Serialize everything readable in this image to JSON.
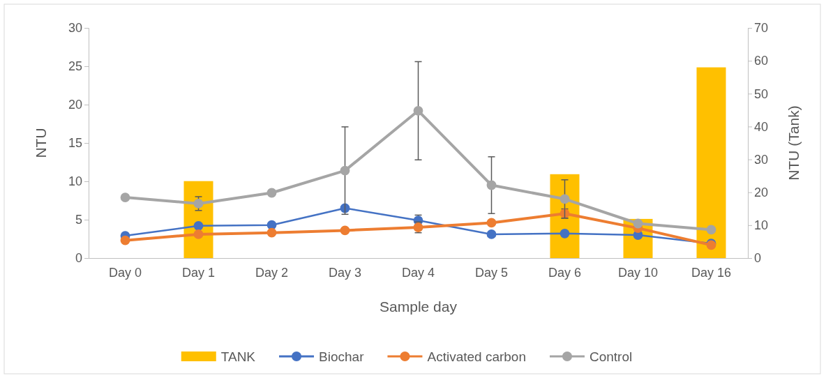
{
  "chart_data": {
    "type": "line",
    "xlabel": "Sample day",
    "ylabel": "NTU",
    "y2label": "NTU (Tank)",
    "categories": [
      "Day 0",
      "Day 1",
      "Day 2",
      "Day 3",
      "Day 4",
      "Day 5",
      "Day 6",
      "Day 10",
      "Day 16"
    ],
    "ylim": [
      0,
      30
    ],
    "yticks": [
      0,
      5,
      10,
      15,
      20,
      25,
      30
    ],
    "y2lim": [
      0,
      70
    ],
    "y2ticks": [
      0,
      10,
      20,
      30,
      40,
      50,
      60,
      70
    ],
    "grid": false,
    "legend": "bottom",
    "marker": "circle",
    "series": [
      {
        "name": "TANK",
        "type": "bar",
        "axis": "y2",
        "color": "#ffc000",
        "values": [
          null,
          23.4,
          null,
          null,
          null,
          null,
          25.5,
          11.9,
          58
        ]
      },
      {
        "name": "Biochar",
        "color": "#4472c4",
        "values": [
          2.9,
          4.2,
          4.3,
          6.5,
          4.9,
          3.1,
          3.2,
          3.0,
          1.9
        ],
        "errors": [
          null,
          null,
          null,
          null,
          0.7,
          null,
          null,
          null,
          null
        ]
      },
      {
        "name": "Activated carbon",
        "color": "#ed7d31",
        "values": [
          2.3,
          3.1,
          3.3,
          3.6,
          4.0,
          4.6,
          5.8,
          3.9,
          1.7
        ],
        "errors": [
          null,
          null,
          null,
          null,
          0.7,
          null,
          0.6,
          null,
          null
        ]
      },
      {
        "name": "Control",
        "color": "#a5a5a5",
        "values": [
          7.9,
          7.1,
          8.5,
          11.4,
          19.2,
          9.5,
          7.7,
          4.5,
          3.7
        ],
        "errors": [
          null,
          0.9,
          null,
          5.7,
          6.4,
          3.7,
          2.5,
          null,
          null
        ]
      }
    ]
  }
}
